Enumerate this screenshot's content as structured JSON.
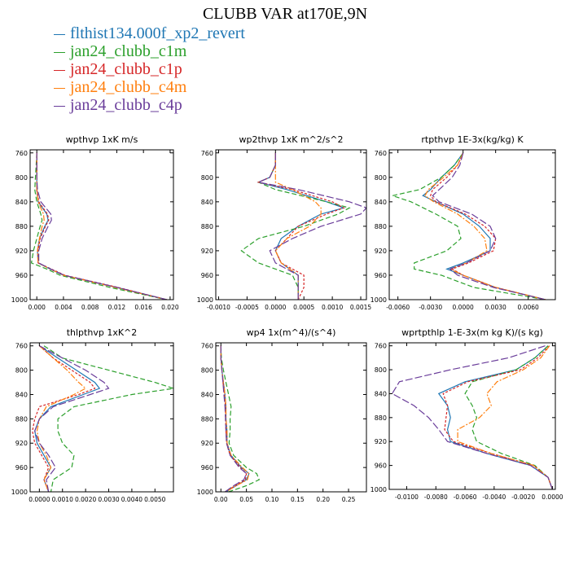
{
  "title": "CLUBB VAR at170E,9N",
  "colors": {
    "flthist134.000f_xp2_revert": "#1f77b4",
    "jan24_clubb_c1m": "#2ca02c",
    "jan24_clubb_c1p": "#d62728",
    "jan24_clubb_c4m": "#ff7f0e",
    "jan24_clubb_c4p": "#6a3d9a"
  },
  "legend": [
    {
      "name": "flthist134.000f_xp2_revert"
    },
    {
      "name": "jan24_clubb_c1m"
    },
    {
      "name": "jan24_clubb_c1p"
    },
    {
      "name": "jan24_clubb_c4m"
    },
    {
      "name": "jan24_clubb_c4p"
    }
  ],
  "chart_data": [
    {
      "type": "line",
      "title": "wpthvp   1xK m/s",
      "xlim": [
        -0.001,
        0.0205
      ],
      "ylim": [
        1000,
        755
      ],
      "y_reversed": true,
      "xticks": [
        "0.000",
        "0.004",
        "0.008",
        "0.012",
        "0.016",
        "0.020"
      ],
      "xtick_values": [
        0.0,
        0.004,
        0.008,
        0.012,
        0.016,
        0.02
      ],
      "yticks": [
        760,
        800,
        840,
        880,
        920,
        960,
        1000
      ],
      "y": [
        760,
        780,
        800,
        820,
        840,
        860,
        870,
        880,
        900,
        920,
        940,
        950,
        960,
        980,
        1000
      ],
      "series": [
        {
          "name": "flthist134.000f_xp2_revert",
          "values": [
            0.0,
            0.0,
            0.0,
            0.0,
            0.0002,
            0.0015,
            0.0017,
            0.0012,
            0.0004,
            0.0001,
            0.0002,
            0.002,
            0.004,
            0.012,
            0.0195
          ]
        },
        {
          "name": "jan24_clubb_c1m",
          "values": [
            0.0,
            -0.0001,
            -0.0002,
            -0.0003,
            0.0,
            0.0006,
            0.0008,
            0.0005,
            0.0,
            -0.0005,
            -0.0008,
            0.0015,
            0.0035,
            0.011,
            0.0195
          ]
        },
        {
          "name": "jan24_clubb_c1p",
          "values": [
            0.0,
            0.0,
            0.0,
            0.0,
            0.0003,
            0.0016,
            0.0018,
            0.0013,
            0.0005,
            0.0002,
            0.0002,
            0.0022,
            0.0042,
            0.0122,
            0.0195
          ]
        },
        {
          "name": "jan24_clubb_c4m",
          "values": [
            0.0,
            0.0,
            0.0,
            0.0,
            0.0002,
            0.001,
            0.0011,
            0.0008,
            0.0004,
            0.0001,
            0.0002,
            0.002,
            0.004,
            0.0118,
            0.0195
          ]
        },
        {
          "name": "jan24_clubb_c4p",
          "values": [
            0.0,
            0.0,
            0.0,
            0.0001,
            0.0006,
            0.0021,
            0.0022,
            0.0017,
            0.0008,
            0.0003,
            0.0003,
            0.0021,
            0.0041,
            0.0121,
            0.0195
          ]
        }
      ]
    },
    {
      "type": "line",
      "title": "wp2thvp   1xK m^2/s^2",
      "xlim": [
        -0.00105,
        0.0016
      ],
      "ylim": [
        1000,
        755
      ],
      "y_reversed": true,
      "xticks": [
        "-0.0010",
        "-0.0005",
        "0.0000",
        "0.0005",
        "0.0010",
        "0.0015"
      ],
      "xtick_values": [
        -0.001,
        -0.0005,
        0.0,
        0.0005,
        0.001,
        0.0015
      ],
      "yticks": [
        760,
        800,
        840,
        880,
        920,
        960,
        1000
      ],
      "y": [
        760,
        780,
        800,
        808,
        820,
        840,
        850,
        860,
        880,
        900,
        920,
        940,
        960,
        980,
        1000
      ],
      "series": [
        {
          "name": "flthist134.000f_xp2_revert",
          "values": [
            0.0,
            0.0,
            -0.0001,
            -0.0003,
            0.0002,
            0.0009,
            0.0012,
            0.0008,
            0.0004,
            0.0001,
            0.0,
            0.0001,
            0.0004,
            0.0004,
            0.0004
          ]
        },
        {
          "name": "jan24_clubb_c1m",
          "values": [
            0.0,
            0.0,
            -0.0001,
            -0.0003,
            0.0,
            0.0009,
            0.0013,
            0.0011,
            0.0005,
            -0.0003,
            -0.0006,
            -0.0003,
            0.0003,
            0.0004,
            0.0004
          ]
        },
        {
          "name": "jan24_clubb_c1p",
          "values": [
            0.0,
            0.0,
            -0.0001,
            -0.0003,
            0.0003,
            0.001,
            0.0012,
            0.0009,
            0.0004,
            0.0002,
            0.0,
            0.0001,
            0.0005,
            0.0005,
            0.0004
          ]
        },
        {
          "name": "jan24_clubb_c4m",
          "values": [
            0.0,
            0.0,
            0.0,
            0.0,
            0.0003,
            0.0007,
            0.0008,
            0.0008,
            0.0006,
            0.0002,
            0.0,
            0.0001,
            0.0004,
            0.0004,
            0.0004
          ]
        },
        {
          "name": "jan24_clubb_c4p",
          "values": [
            0.0,
            0.0,
            -0.0001,
            -0.0003,
            0.0004,
            0.0013,
            0.0016,
            0.0015,
            0.0008,
            0.0003,
            -0.0001,
            0.0,
            0.0004,
            0.0004,
            0.0004
          ]
        }
      ]
    },
    {
      "type": "line",
      "title": "rtpthvp   1E-3x(kg/kg) K",
      "xlim": [
        -0.0068,
        0.0085
      ],
      "ylim": [
        1000,
        755
      ],
      "y_reversed": true,
      "xticks": [
        "-0.0060",
        "-0.0030",
        "0.0000",
        "0.0030",
        "0.0060"
      ],
      "xtick_values": [
        -0.006,
        -0.003,
        0.0,
        0.003,
        0.006
      ],
      "yticks": [
        760,
        800,
        840,
        880,
        920,
        960,
        1000
      ],
      "y": [
        760,
        780,
        800,
        820,
        830,
        840,
        860,
        880,
        900,
        920,
        940,
        950,
        960,
        980,
        1000
      ],
      "series": [
        {
          "name": "flthist134.000f_xp2_revert",
          "values": [
            0.0,
            -0.0008,
            -0.002,
            -0.003,
            -0.0037,
            -0.0025,
            0.0,
            0.0015,
            0.0025,
            0.0025,
            0.0,
            -0.0015,
            0.0,
            0.003,
            0.0076
          ]
        },
        {
          "name": "jan24_clubb_c1m",
          "values": [
            0.0,
            -0.0008,
            -0.002,
            -0.004,
            -0.0065,
            -0.0048,
            -0.0025,
            -0.0005,
            -0.0002,
            -0.0015,
            -0.0045,
            -0.0045,
            -0.002,
            0.001,
            0.0076
          ]
        },
        {
          "name": "jan24_clubb_c1p",
          "values": [
            0.0,
            -0.0005,
            -0.0015,
            -0.0028,
            -0.003,
            -0.0025,
            0.0002,
            0.002,
            0.003,
            0.0028,
            0.0005,
            -0.001,
            0.0,
            0.003,
            0.0076
          ]
        },
        {
          "name": "jan24_clubb_c4m",
          "values": [
            0.0,
            -0.0005,
            -0.0018,
            -0.0032,
            -0.0035,
            -0.0027,
            -0.0005,
            0.001,
            0.002,
            0.0022,
            0.0003,
            -0.0012,
            0.0,
            0.003,
            0.0076
          ]
        },
        {
          "name": "jan24_clubb_c4p",
          "values": [
            0.0,
            -0.0003,
            -0.001,
            -0.0022,
            -0.0028,
            -0.0022,
            0.0008,
            0.0025,
            0.003,
            0.0025,
            0.0003,
            -0.0012,
            -0.0005,
            0.0028,
            0.0076
          ]
        }
      ]
    },
    {
      "type": "line",
      "title": "thlpthvp   1xK^2",
      "xlim": [
        -0.0004,
        0.0058
      ],
      "ylim": [
        1000,
        755
      ],
      "y_reversed": true,
      "xticks": [
        "0.0000",
        "0.0010",
        "0.0020",
        "0.0030",
        "0.0040",
        "0.0050"
      ],
      "xtick_values": [
        0.0,
        0.001,
        0.002,
        0.003,
        0.004,
        0.005
      ],
      "yticks": [
        760,
        800,
        840,
        880,
        920,
        960,
        1000
      ],
      "y": [
        760,
        780,
        800,
        820,
        830,
        840,
        860,
        880,
        900,
        920,
        940,
        960,
        980,
        1000
      ],
      "series": [
        {
          "name": "flthist134.000f_xp2_revert",
          "values": [
            0.0,
            0.0008,
            0.0016,
            0.0024,
            0.0026,
            0.0019,
            0.0005,
            0.0,
            -0.0002,
            -0.0001,
            0.0002,
            0.0005,
            0.0002,
            0.0004
          ]
        },
        {
          "name": "jan24_clubb_c1m",
          "values": [
            0.0002,
            0.001,
            0.003,
            0.005,
            0.0058,
            0.004,
            0.0015,
            0.0008,
            0.0008,
            0.001,
            0.0015,
            0.0014,
            0.0006,
            0.0005
          ]
        },
        {
          "name": "jan24_clubb_c1p",
          "values": [
            0.0,
            0.0006,
            0.0014,
            0.0022,
            0.0024,
            0.0017,
            0.0,
            -0.0002,
            -0.0003,
            -0.0002,
            0.0001,
            0.0004,
            0.0002,
            0.0004
          ]
        },
        {
          "name": "jan24_clubb_c4m",
          "values": [
            0.0,
            0.0006,
            0.0012,
            0.0017,
            0.002,
            0.0015,
            0.0003,
            0.0,
            -0.0001,
            0.0,
            0.0003,
            0.0005,
            0.0002,
            0.0004
          ]
        },
        {
          "name": "jan24_clubb_c4p",
          "values": [
            0.0,
            0.001,
            0.002,
            0.0028,
            0.003,
            0.0022,
            0.0006,
            0.0,
            -0.0002,
            0.0,
            0.0004,
            0.0007,
            0.0003,
            0.0004
          ]
        }
      ]
    },
    {
      "type": "line",
      "title": "wp4   1x(m^4)/(s^4)",
      "xlim": [
        -0.01,
        0.285
      ],
      "ylim": [
        1000,
        755
      ],
      "y_reversed": true,
      "xticks": [
        "0.00",
        "0.05",
        "0.10",
        "0.15",
        "0.20",
        "0.25"
      ],
      "xtick_values": [
        0.0,
        0.05,
        0.1,
        0.15,
        0.2,
        0.25
      ],
      "yticks": [
        760,
        800,
        840,
        880,
        920,
        960,
        1000
      ],
      "y": [
        760,
        780,
        800,
        820,
        840,
        860,
        880,
        900,
        920,
        940,
        960,
        970,
        980,
        990,
        1000
      ],
      "series": [
        {
          "name": "flthist134.000f_xp2_revert",
          "values": [
            0.0,
            0.0,
            0.002,
            0.005,
            0.008,
            0.01,
            0.01,
            0.012,
            0.012,
            0.02,
            0.04,
            0.055,
            0.05,
            0.03,
            0.01
          ]
        },
        {
          "name": "jan24_clubb_c1m",
          "values": [
            0.0,
            0.001,
            0.005,
            0.01,
            0.015,
            0.02,
            0.018,
            0.018,
            0.016,
            0.025,
            0.05,
            0.07,
            0.075,
            0.05,
            0.015
          ]
        },
        {
          "name": "jan24_clubb_c1p",
          "values": [
            0.0,
            0.0,
            0.002,
            0.004,
            0.007,
            0.009,
            0.009,
            0.01,
            0.011,
            0.018,
            0.038,
            0.05,
            0.048,
            0.028,
            0.008
          ]
        },
        {
          "name": "jan24_clubb_c4m",
          "values": [
            0.0,
            0.0,
            0.002,
            0.005,
            0.008,
            0.01,
            0.01,
            0.012,
            0.012,
            0.02,
            0.042,
            0.055,
            0.052,
            0.03,
            0.01
          ]
        },
        {
          "name": "jan24_clubb_c4p",
          "values": [
            0.0,
            0.0,
            0.002,
            0.004,
            0.006,
            0.008,
            0.009,
            0.01,
            0.011,
            0.018,
            0.036,
            0.05,
            0.045,
            0.025,
            0.008
          ]
        }
      ]
    },
    {
      "type": "line",
      "title": "wprtpthlp   1-E-3x(m kg K)/(s kg)",
      "xlim": [
        -0.0112,
        0.0002
      ],
      "ylim": [
        1000,
        755
      ],
      "y_reversed": true,
      "xticks": [
        "-0.0100",
        "-0.0080",
        "-0.0060",
        "-0.0040",
        "-0.0020",
        "0.0000"
      ],
      "xtick_values": [
        -0.01,
        -0.008,
        -0.006,
        -0.004,
        -0.002,
        0.0
      ],
      "yticks": [
        760,
        800,
        840,
        880,
        920,
        960,
        1000
      ],
      "y": [
        760,
        780,
        800,
        820,
        840,
        860,
        880,
        900,
        920,
        940,
        960,
        980,
        1000
      ],
      "series": [
        {
          "name": "flthist134.000f_xp2_revert",
          "values": [
            -0.0003,
            -0.0012,
            -0.0025,
            -0.006,
            -0.0078,
            -0.0072,
            -0.007,
            -0.0072,
            -0.007,
            -0.0045,
            -0.0015,
            -0.0003,
            0.0
          ]
        },
        {
          "name": "jan24_clubb_c1m",
          "values": [
            -0.0003,
            -0.0012,
            -0.0025,
            -0.0055,
            -0.006,
            -0.0055,
            -0.0052,
            -0.0055,
            -0.0052,
            -0.0035,
            -0.0012,
            -0.0003,
            0.0
          ]
        },
        {
          "name": "jan24_clubb_c1p",
          "values": [
            -0.0002,
            -0.001,
            -0.0022,
            -0.0058,
            -0.0075,
            -0.0072,
            -0.0073,
            -0.0074,
            -0.0068,
            -0.0042,
            -0.0013,
            -0.0003,
            0.0
          ]
        },
        {
          "name": "jan24_clubb_c4m",
          "values": [
            -0.0002,
            -0.0008,
            -0.002,
            -0.0038,
            -0.0045,
            -0.0042,
            -0.005,
            -0.0065,
            -0.0065,
            -0.0042,
            -0.0013,
            -0.0003,
            0.0
          ]
        },
        {
          "name": "jan24_clubb_c4p",
          "values": [
            -0.0005,
            -0.003,
            -0.007,
            -0.0105,
            -0.011,
            -0.0095,
            -0.0085,
            -0.0078,
            -0.0072,
            -0.0045,
            -0.0015,
            -0.0003,
            0.0
          ]
        }
      ]
    }
  ]
}
